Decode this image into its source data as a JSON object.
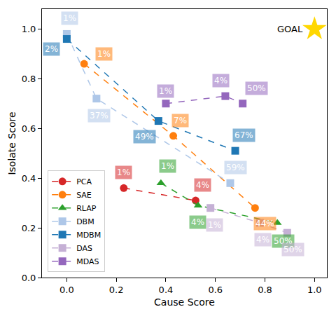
{
  "chart_data": {
    "type": "scatter",
    "x_label": "Cause Score",
    "y_label": "Isolate Score",
    "xlim": [
      -0.1,
      1.05
    ],
    "ylim": [
      0,
      1.08
    ],
    "xticks": [
      {
        "value": 0,
        "label": "0.0"
      },
      {
        "value": 0.2,
        "label": "0.2"
      },
      {
        "value": 0.4,
        "label": "0.4"
      },
      {
        "value": 0.6,
        "label": "0.6"
      },
      {
        "value": 0.8,
        "label": "0.8"
      },
      {
        "value": 1,
        "label": "1.0"
      }
    ],
    "yticks": [
      {
        "value": 0,
        "label": "0.0"
      },
      {
        "value": 0.2,
        "label": "0.2"
      },
      {
        "value": 0.4,
        "label": "0.4"
      },
      {
        "value": 0.6,
        "label": "0.6"
      },
      {
        "value": 0.8,
        "label": "0.8"
      },
      {
        "value": 1,
        "label": "1.0"
      }
    ],
    "grid": false,
    "legend": "lower left",
    "line_style": "dashed",
    "series": [
      {
        "name": "PCA",
        "color": "#d62728",
        "marker": "circle",
        "x": [
          0.23,
          0.52
        ],
        "values": [
          0.36,
          0.31
        ],
        "point_labels": [
          "1%",
          "4%"
        ]
      },
      {
        "name": "SAE",
        "color": "#ff7f0e",
        "marker": "circle",
        "x": [
          0.07,
          0.43,
          0.76
        ],
        "values": [
          0.86,
          0.57,
          0.28
        ],
        "point_labels": [
          "1%",
          "7%",
          "44%"
        ]
      },
      {
        "name": "RLAP",
        "color": "#2ca02c",
        "marker": "triangle-up",
        "x": [
          0.38,
          0.53,
          0.85
        ],
        "values": [
          0.38,
          0.29,
          0.22
        ],
        "point_labels": [
          "1%",
          "4%",
          "50%"
        ]
      },
      {
        "name": "DBM",
        "color": "#aec7e8",
        "marker": "square",
        "x": [
          0.0,
          0.12,
          0.66
        ],
        "values": [
          0.98,
          0.72,
          0.38
        ],
        "point_labels": [
          "1%",
          "37%",
          "59%"
        ]
      },
      {
        "name": "MDBM",
        "color": "#1f77b4",
        "marker": "square",
        "x": [
          0.0,
          0.37,
          0.68
        ],
        "values": [
          0.96,
          0.63,
          0.51
        ],
        "point_labels": [
          "2%",
          "49%",
          "67%"
        ]
      },
      {
        "name": "DAS",
        "color": "#c5b0d5",
        "marker": "square",
        "x": [
          0.58,
          0.78,
          0.89
        ],
        "values": [
          0.28,
          0.22,
          0.18
        ],
        "point_labels": [
          "1%",
          "4%",
          "50%"
        ]
      },
      {
        "name": "MDAS",
        "color": "#9467bd",
        "marker": "square",
        "x": [
          0.4,
          0.64,
          0.71
        ],
        "values": [
          0.7,
          0.73,
          0.7
        ],
        "point_labels": [
          "1%",
          "4%",
          "50%"
        ]
      }
    ],
    "annotations": [
      {
        "text": "GOAL",
        "x": 1,
        "y": 1,
        "color": "#ffd700",
        "marker": "star"
      }
    ]
  }
}
